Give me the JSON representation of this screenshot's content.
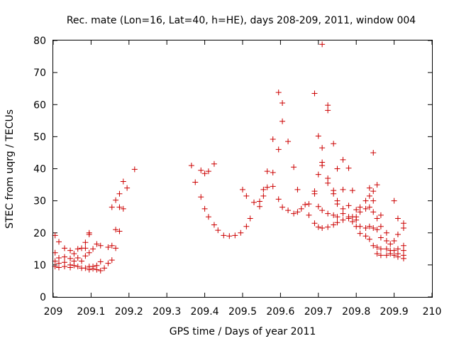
{
  "chart_data": {
    "type": "scatter",
    "title": "Rec. mate (Lon=16, Lat=40, h=HE), days 208-209, 2011, window 004",
    "xlabel": "GPS time / Days of year 2011",
    "ylabel": "STEC from uqrg / TECUs",
    "xlim": [
      209,
      210
    ],
    "ylim": [
      0,
      80
    ],
    "xticks": [
      209,
      209.1,
      209.2,
      209.3,
      209.4,
      209.5,
      209.6,
      209.7,
      209.8,
      209.9,
      210
    ],
    "xtick_labels": [
      "209",
      "209.1",
      "209.2",
      "209.3",
      "209.4",
      "209.5",
      "209.6",
      "209.7",
      "209.8",
      "209.9",
      "210"
    ],
    "yticks": [
      0,
      10,
      20,
      30,
      40,
      50,
      60,
      70,
      80
    ],
    "ytick_labels": [
      "0",
      "10",
      "20",
      "30",
      "40",
      "50",
      "60",
      "70",
      "80"
    ],
    "grid": false,
    "marker": "+",
    "color": "#cc0000",
    "series": [
      {
        "name": "STEC",
        "points": [
          [
            209.005,
            19.2
          ],
          [
            209.005,
            13.8
          ],
          [
            209.005,
            11.2
          ],
          [
            209.005,
            9.5
          ],
          [
            209.015,
            17.2
          ],
          [
            209.015,
            12.2
          ],
          [
            209.015,
            10.5
          ],
          [
            209.015,
            9.2
          ],
          [
            209.03,
            15.2
          ],
          [
            209.03,
            12.5
          ],
          [
            209.03,
            10.8
          ],
          [
            209.03,
            9.5
          ],
          [
            209.045,
            14.5
          ],
          [
            209.045,
            12.0
          ],
          [
            209.045,
            10.0
          ],
          [
            209.045,
            9.2
          ],
          [
            209.055,
            13.5
          ],
          [
            209.055,
            11.2
          ],
          [
            209.055,
            9.8
          ],
          [
            209.065,
            15.0
          ],
          [
            209.065,
            12.2
          ],
          [
            209.065,
            9.5
          ],
          [
            209.075,
            15.2
          ],
          [
            209.075,
            11.2
          ],
          [
            209.075,
            9.0
          ],
          [
            209.085,
            17.0
          ],
          [
            209.085,
            15.2
          ],
          [
            209.085,
            12.8
          ],
          [
            209.085,
            9.0
          ],
          [
            209.095,
            20.0
          ],
          [
            209.095,
            19.5
          ],
          [
            209.095,
            13.8
          ],
          [
            209.095,
            9.5
          ],
          [
            209.095,
            8.5
          ],
          [
            209.105,
            15.0
          ],
          [
            209.105,
            9.5
          ],
          [
            209.105,
            8.8
          ],
          [
            209.115,
            16.5
          ],
          [
            209.115,
            9.8
          ],
          [
            209.115,
            8.5
          ],
          [
            209.125,
            16.0
          ],
          [
            209.125,
            11.0
          ],
          [
            209.125,
            8.2
          ],
          [
            209.135,
            9.0
          ],
          [
            209.145,
            15.5
          ],
          [
            209.145,
            10.5
          ],
          [
            209.155,
            28.0
          ],
          [
            209.155,
            16.0
          ],
          [
            209.155,
            11.5
          ],
          [
            209.165,
            30.2
          ],
          [
            209.165,
            21.0
          ],
          [
            209.165,
            15.2
          ],
          [
            209.175,
            32.2
          ],
          [
            209.175,
            28.0
          ],
          [
            209.175,
            20.5
          ],
          [
            209.185,
            36.0
          ],
          [
            209.185,
            27.5
          ],
          [
            209.195,
            34.0
          ],
          [
            209.215,
            39.8
          ],
          [
            209.365,
            41.0
          ],
          [
            209.375,
            35.8
          ],
          [
            209.39,
            39.5
          ],
          [
            209.39,
            31.2
          ],
          [
            209.4,
            38.5
          ],
          [
            209.4,
            27.5
          ],
          [
            209.41,
            39.2
          ],
          [
            209.41,
            25.0
          ],
          [
            209.425,
            41.5
          ],
          [
            209.425,
            22.5
          ],
          [
            209.435,
            20.8
          ],
          [
            209.45,
            19.2
          ],
          [
            209.465,
            19.0
          ],
          [
            209.48,
            19.2
          ],
          [
            209.495,
            20.0
          ],
          [
            209.5,
            33.5
          ],
          [
            209.51,
            31.5
          ],
          [
            209.51,
            22.0
          ],
          [
            209.52,
            24.5
          ],
          [
            209.53,
            29.5
          ],
          [
            209.545,
            29.8
          ],
          [
            209.545,
            28.2
          ],
          [
            209.555,
            33.5
          ],
          [
            209.555,
            31.5
          ],
          [
            209.565,
            39.2
          ],
          [
            209.565,
            34.2
          ],
          [
            209.58,
            49.2
          ],
          [
            209.58,
            38.8
          ],
          [
            209.58,
            34.5
          ],
          [
            209.595,
            63.8
          ],
          [
            209.595,
            46.0
          ],
          [
            209.595,
            30.5
          ],
          [
            209.605,
            60.5
          ],
          [
            209.605,
            54.8
          ],
          [
            209.605,
            28.0
          ],
          [
            209.62,
            48.5
          ],
          [
            209.62,
            27.0
          ],
          [
            209.635,
            40.5
          ],
          [
            209.635,
            26.0
          ],
          [
            209.645,
            33.5
          ],
          [
            209.645,
            26.5
          ],
          [
            209.655,
            27.5
          ],
          [
            209.665,
            28.8
          ],
          [
            209.675,
            29.0
          ],
          [
            209.675,
            25.5
          ],
          [
            209.69,
            63.5
          ],
          [
            209.69,
            33.0
          ],
          [
            209.69,
            32.2
          ],
          [
            209.69,
            23.0
          ],
          [
            209.7,
            50.2
          ],
          [
            209.7,
            38.2
          ],
          [
            209.7,
            28.2
          ],
          [
            209.7,
            21.8
          ],
          [
            209.71,
            78.8
          ],
          [
            209.71,
            46.5
          ],
          [
            209.71,
            42.0
          ],
          [
            209.71,
            41.0
          ],
          [
            209.71,
            27.0
          ],
          [
            209.71,
            21.5
          ],
          [
            209.725,
            59.8
          ],
          [
            209.725,
            58.2
          ],
          [
            209.725,
            37.0
          ],
          [
            209.725,
            35.5
          ],
          [
            209.725,
            26.0
          ],
          [
            209.725,
            21.8
          ],
          [
            209.74,
            47.8
          ],
          [
            209.74,
            33.2
          ],
          [
            209.74,
            32.2
          ],
          [
            209.74,
            25.5
          ],
          [
            209.74,
            22.5
          ],
          [
            209.75,
            40.0
          ],
          [
            209.75,
            30.0
          ],
          [
            209.75,
            29.0
          ],
          [
            209.75,
            25.0
          ],
          [
            209.75,
            23.2
          ],
          [
            209.765,
            42.8
          ],
          [
            209.765,
            33.5
          ],
          [
            209.765,
            27.5
          ],
          [
            209.765,
            26.0
          ],
          [
            209.765,
            24.0
          ],
          [
            209.78,
            40.2
          ],
          [
            209.78,
            28.5
          ],
          [
            209.78,
            25.0
          ],
          [
            209.78,
            24.5
          ],
          [
            209.79,
            33.2
          ],
          [
            209.79,
            25.0
          ],
          [
            209.79,
            23.5
          ],
          [
            209.8,
            27.2
          ],
          [
            209.8,
            25.0
          ],
          [
            209.8,
            24.0
          ],
          [
            209.8,
            22.0
          ],
          [
            209.81,
            28.0
          ],
          [
            209.81,
            26.5
          ],
          [
            209.81,
            22.0
          ],
          [
            209.81,
            19.8
          ],
          [
            209.825,
            30.0
          ],
          [
            209.825,
            27.5
          ],
          [
            209.825,
            21.5
          ],
          [
            209.825,
            19.0
          ],
          [
            209.835,
            34.0
          ],
          [
            209.835,
            31.5
          ],
          [
            209.835,
            28.0
          ],
          [
            209.835,
            22.0
          ],
          [
            209.835,
            18.0
          ],
          [
            209.845,
            45.0
          ],
          [
            209.845,
            33.0
          ],
          [
            209.845,
            30.0
          ],
          [
            209.845,
            26.5
          ],
          [
            209.845,
            21.5
          ],
          [
            209.845,
            16.0
          ],
          [
            209.855,
            35.0
          ],
          [
            209.855,
            24.5
          ],
          [
            209.855,
            21.0
          ],
          [
            209.855,
            15.5
          ],
          [
            209.855,
            13.5
          ],
          [
            209.865,
            25.5
          ],
          [
            209.865,
            22.0
          ],
          [
            209.865,
            18.5
          ],
          [
            209.865,
            15.0
          ],
          [
            209.865,
            13.0
          ],
          [
            209.88,
            20.0
          ],
          [
            209.88,
            17.5
          ],
          [
            209.88,
            15.0
          ],
          [
            209.88,
            13.0
          ],
          [
            209.89,
            16.5
          ],
          [
            209.89,
            14.5
          ],
          [
            209.89,
            13.5
          ],
          [
            209.9,
            30.0
          ],
          [
            209.9,
            17.5
          ],
          [
            209.9,
            14.5
          ],
          [
            209.9,
            13.0
          ],
          [
            209.91,
            24.5
          ],
          [
            209.91,
            19.5
          ],
          [
            209.91,
            15.0
          ],
          [
            209.91,
            13.5
          ],
          [
            209.91,
            12.5
          ],
          [
            209.925,
            23.0
          ],
          [
            209.925,
            21.5
          ],
          [
            209.925,
            16.0
          ],
          [
            209.925,
            14.5
          ],
          [
            209.925,
            13.0
          ],
          [
            209.925,
            12.0
          ]
        ]
      }
    ]
  }
}
